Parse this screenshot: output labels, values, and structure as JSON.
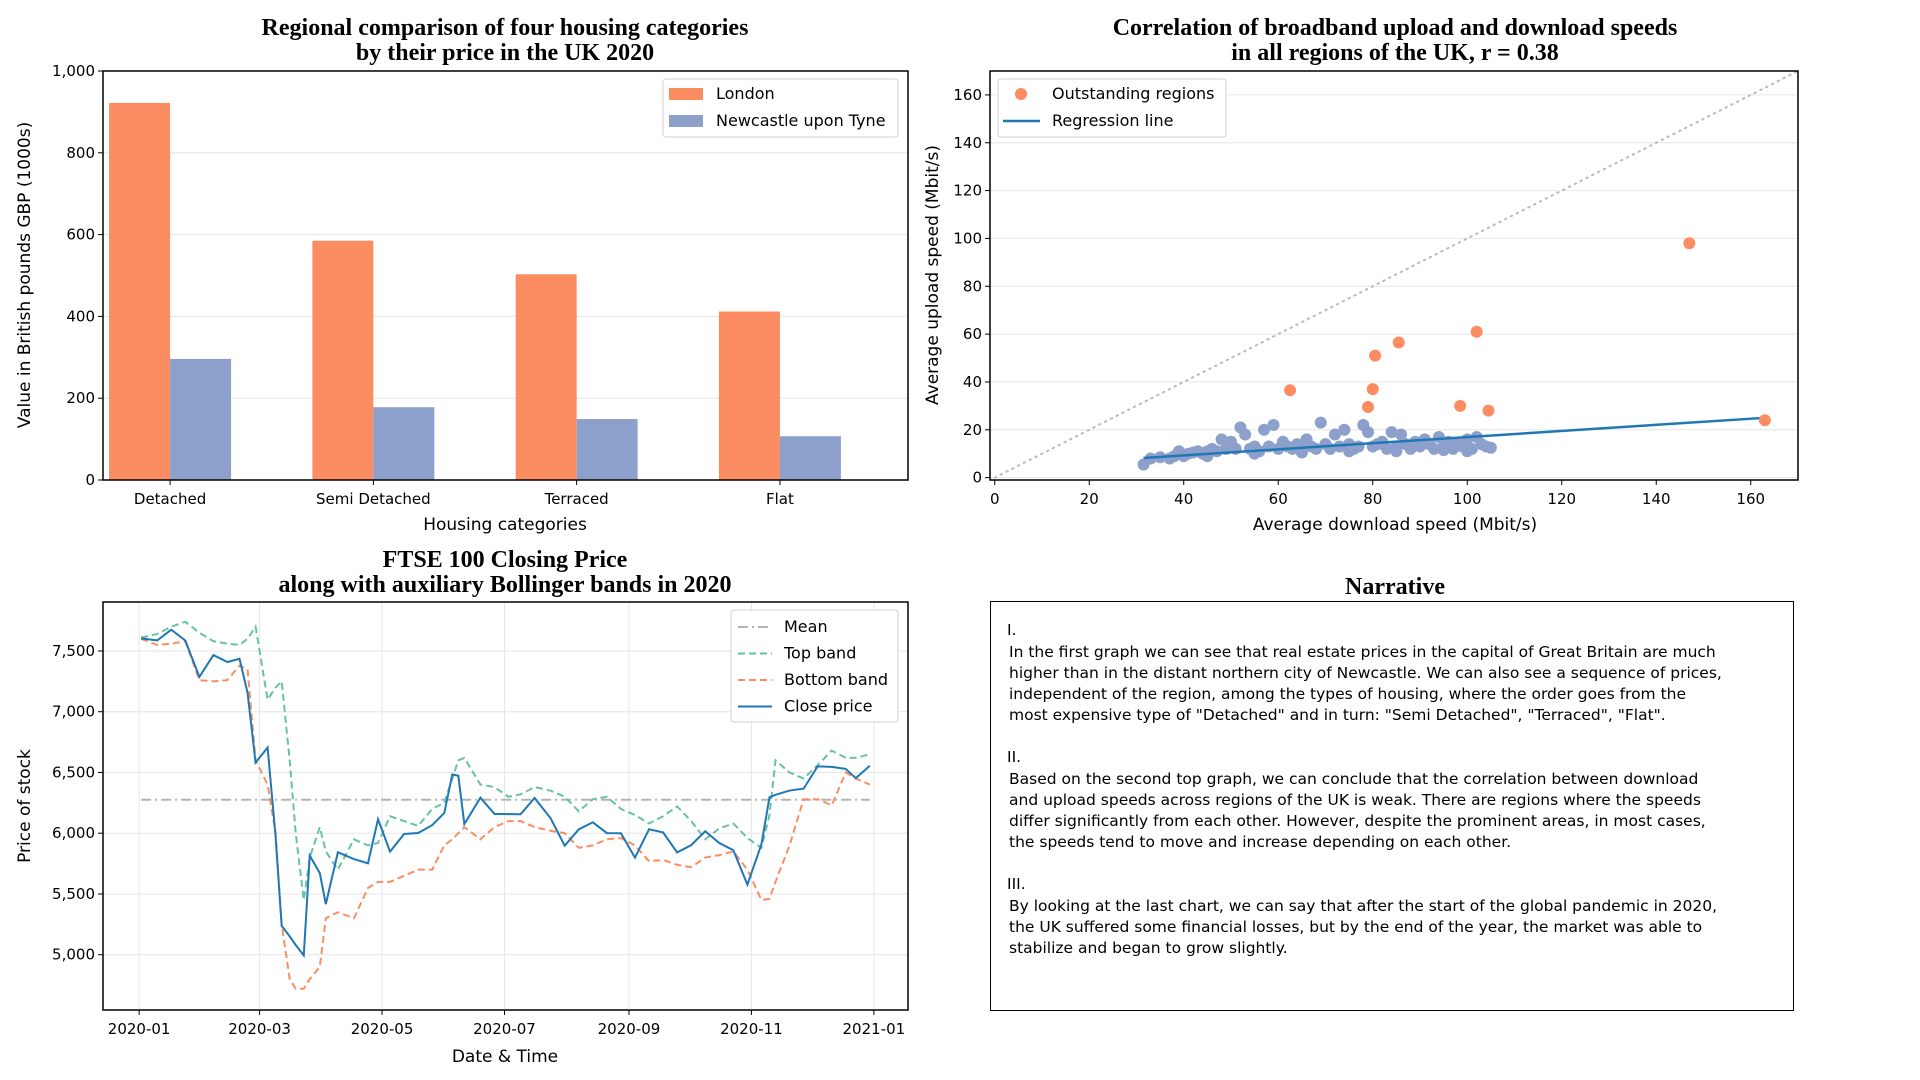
{
  "chart_data": [
    {
      "type": "bar",
      "title": [
        "Regional comparison of four housing categories",
        "by their price in the UK 2020"
      ],
      "xlabel": "Housing categories",
      "ylabel": "Value in British pounds GBP (1000s)",
      "categories": [
        "Detached",
        "Semi Detached",
        "Terraced",
        "Flat"
      ],
      "series": [
        {
          "name": "London",
          "values": [
            922,
            585,
            503,
            412
          ],
          "color": "#fc8d62"
        },
        {
          "name": "Newcastle upon Tyne",
          "values": [
            296,
            178,
            149,
            107
          ],
          "color": "#8da0cb"
        }
      ],
      "ylim": [
        0,
        1000
      ],
      "yticks": [
        0,
        200,
        400,
        600,
        800,
        1000
      ],
      "ytick_labels": [
        "0",
        "200",
        "400",
        "600",
        "800",
        "1,000"
      ],
      "grid": "y",
      "legend": "top-right"
    },
    {
      "type": "scatter",
      "title": [
        "Correlation of broadband upload and download speeds",
        "in all regions of the UK, r = 0.38"
      ],
      "xlabel": "Average download speed (Mbit/s)",
      "ylabel": "Average upload speed (Mbit/s)",
      "xlim": [
        -1,
        170
      ],
      "ylim": [
        -1,
        170
      ],
      "xticks": [
        0,
        20,
        40,
        60,
        80,
        100,
        120,
        140,
        160
      ],
      "yticks": [
        0,
        20,
        40,
        60,
        80,
        100,
        120,
        140,
        160
      ],
      "grid": "y",
      "legend": "top-left",
      "regions": {
        "color": "#8da0cb",
        "points": [
          [
            31.5,
            5.5
          ],
          [
            33,
            8
          ],
          [
            35,
            8.5
          ],
          [
            37,
            8
          ],
          [
            38,
            9
          ],
          [
            39,
            11
          ],
          [
            40,
            9
          ],
          [
            41,
            10
          ],
          [
            42,
            10.5
          ],
          [
            43,
            11
          ],
          [
            44,
            10
          ],
          [
            45,
            11
          ],
          [
            45,
            9
          ],
          [
            46,
            12
          ],
          [
            47,
            11
          ],
          [
            48,
            16
          ],
          [
            49,
            12
          ],
          [
            50,
            15
          ],
          [
            51,
            12
          ],
          [
            52,
            21
          ],
          [
            53,
            18
          ],
          [
            54,
            12
          ],
          [
            55,
            13
          ],
          [
            55,
            10
          ],
          [
            56,
            11
          ],
          [
            57,
            20
          ],
          [
            58,
            13
          ],
          [
            59,
            22
          ],
          [
            60,
            12
          ],
          [
            61,
            15
          ],
          [
            62,
            13
          ],
          [
            63,
            12
          ],
          [
            64,
            14
          ],
          [
            65,
            12
          ],
          [
            65,
            10.5
          ],
          [
            66,
            16
          ],
          [
            67,
            13
          ],
          [
            68,
            12
          ],
          [
            69,
            23
          ],
          [
            70,
            14
          ],
          [
            71,
            12
          ],
          [
            72,
            18
          ],
          [
            73,
            13
          ],
          [
            74,
            20
          ],
          [
            75,
            14
          ],
          [
            75,
            11
          ],
          [
            76,
            12
          ],
          [
            77,
            13
          ],
          [
            78,
            22
          ],
          [
            79,
            19
          ],
          [
            80,
            13
          ],
          [
            81,
            14
          ],
          [
            82,
            15
          ],
          [
            83,
            12
          ],
          [
            84,
            19
          ],
          [
            85,
            13
          ],
          [
            85,
            11
          ],
          [
            86,
            18
          ],
          [
            87,
            14
          ],
          [
            88,
            12
          ],
          [
            89,
            15
          ],
          [
            90,
            13
          ],
          [
            91,
            16
          ],
          [
            92,
            14
          ],
          [
            93,
            12
          ],
          [
            94,
            17
          ],
          [
            95,
            13
          ],
          [
            95,
            11.5
          ],
          [
            96,
            15
          ],
          [
            97,
            12
          ],
          [
            98,
            14
          ],
          [
            99,
            13
          ],
          [
            100,
            16
          ],
          [
            100,
            11
          ],
          [
            101,
            12
          ],
          [
            102,
            17
          ],
          [
            103,
            14
          ],
          [
            104,
            13
          ],
          [
            105,
            12.5
          ]
        ]
      },
      "outstanding": {
        "name": "Outstanding regions",
        "color": "#fc8d62",
        "points": [
          [
            62.5,
            36.5
          ],
          [
            79,
            29.5
          ],
          [
            80,
            37
          ],
          [
            80.5,
            51
          ],
          [
            85.5,
            56.5
          ],
          [
            98.5,
            30
          ],
          [
            102,
            61
          ],
          [
            104.5,
            28
          ],
          [
            147,
            98
          ],
          [
            163,
            24
          ]
        ]
      },
      "regression": {
        "name": "Regression line",
        "color": "#1f77b4",
        "from": [
          31.5,
          8.2
        ],
        "to": [
          163,
          25
        ]
      },
      "identity_line": {
        "color": "#bbbbbb",
        "from": [
          0,
          0
        ],
        "to": [
          170,
          170
        ]
      }
    },
    {
      "type": "line",
      "title": [
        "FTSE 100 Closing Price",
        "along with auxiliary Bollinger bands in 2020"
      ],
      "xlabel": "Date & Time",
      "ylabel": "Price of stock",
      "xlim": [
        "2019-12-14",
        "2021-01-18"
      ],
      "ylim": [
        4545,
        7903
      ],
      "xticks": [
        "2020-01-01",
        "2020-03-01",
        "2020-05-01",
        "2020-07-01",
        "2020-09-01",
        "2020-11-01",
        "2021-01-01"
      ],
      "xtick_labels": [
        "2020-01",
        "2020-03",
        "2020-05",
        "2020-07",
        "2020-09",
        "2020-11",
        "2021-01"
      ],
      "yticks": [
        5000,
        5500,
        6000,
        6500,
        7000,
        7500
      ],
      "ytick_labels": [
        "5,000",
        "5,500",
        "6,000",
        "6,500",
        "7,000",
        "7,500"
      ],
      "grid": "both",
      "legend": "top-right",
      "x": [
        "2020-01-02",
        "2020-01-10",
        "2020-01-17",
        "2020-01-24",
        "2020-01-31",
        "2020-02-07",
        "2020-02-14",
        "2020-02-20",
        "2020-02-24",
        "2020-02-28",
        "2020-03-05",
        "2020-03-09",
        "2020-03-12",
        "2020-03-16",
        "2020-03-19",
        "2020-03-23",
        "2020-03-26",
        "2020-03-31",
        "2020-04-03",
        "2020-04-09",
        "2020-04-17",
        "2020-04-24",
        "2020-04-29",
        "2020-05-05",
        "2020-05-12",
        "2020-05-19",
        "2020-05-26",
        "2020-06-01",
        "2020-06-05",
        "2020-06-08",
        "2020-06-11",
        "2020-06-19",
        "2020-06-26",
        "2020-07-03",
        "2020-07-09",
        "2020-07-16",
        "2020-07-24",
        "2020-07-31",
        "2020-08-07",
        "2020-08-14",
        "2020-08-21",
        "2020-08-28",
        "2020-09-04",
        "2020-09-11",
        "2020-09-18",
        "2020-09-25",
        "2020-10-02",
        "2020-10-09",
        "2020-10-16",
        "2020-10-23",
        "2020-10-30",
        "2020-11-06",
        "2020-11-10",
        "2020-11-13",
        "2020-11-20",
        "2020-11-27",
        "2020-12-04",
        "2020-12-11",
        "2020-12-18",
        "2020-12-23",
        "2020-12-30"
      ],
      "series": [
        {
          "name": "Mean",
          "style": "dashdot",
          "color": "#b3b3b3",
          "constant": 6275
        },
        {
          "name": "Top band",
          "style": "dashed",
          "color": "#66c2a5",
          "values": [
            7610,
            7640,
            7700,
            7740,
            7650,
            7580,
            7560,
            7550,
            7600,
            7700,
            7100,
            7200,
            7250,
            6600,
            6000,
            5450,
            5800,
            6050,
            5850,
            5700,
            5950,
            5900,
            5920,
            6140,
            6100,
            6060,
            6200,
            6250,
            6450,
            6600,
            6620,
            6400,
            6380,
            6300,
            6320,
            6380,
            6350,
            6300,
            6180,
            6280,
            6300,
            6200,
            6150,
            6080,
            6140,
            6220,
            6100,
            5950,
            6040,
            6080,
            5960,
            5880,
            6150,
            6600,
            6500,
            6450,
            6560,
            6680,
            6620,
            6620,
            6650
          ]
        },
        {
          "name": "Bottom band",
          "style": "dashed",
          "color": "#fc8d62",
          "values": [
            7600,
            7550,
            7560,
            7580,
            7260,
            7250,
            7260,
            7380,
            7350,
            6600,
            6400,
            6000,
            5250,
            4800,
            4720,
            4720,
            4800,
            4900,
            5300,
            5350,
            5300,
            5550,
            5600,
            5600,
            5650,
            5700,
            5700,
            5900,
            5950,
            6000,
            6050,
            5950,
            6050,
            6100,
            6100,
            6050,
            6020,
            6000,
            5880,
            5900,
            5950,
            5960,
            5900,
            5770,
            5780,
            5740,
            5720,
            5800,
            5820,
            5850,
            5700,
            5450,
            5460,
            5600,
            5900,
            6280,
            6280,
            6230,
            6500,
            6450,
            6400
          ]
        },
        {
          "name": "Close price",
          "style": "solid",
          "color": "#1f77b4",
          "values": [
            7604,
            7587,
            7675,
            7586,
            7286,
            7466,
            7409,
            7436,
            7157,
            6581,
            6705,
            5966,
            5237,
            5151,
            5080,
            4994,
            5816,
            5672,
            5416,
            5843,
            5787,
            5752,
            6115,
            5849,
            5994,
            6002,
            6067,
            6166,
            6484,
            6473,
            6076,
            6292,
            6159,
            6157,
            6156,
            6290,
            6123,
            5897,
            6032,
            6090,
            6001,
            6000,
            5799,
            6032,
            6007,
            5842,
            5902,
            6016,
            5919,
            5860,
            5577,
            5910,
            6296,
            6316,
            6351,
            6367,
            6550,
            6546,
            6529,
            6453,
            6555
          ]
        }
      ]
    }
  ],
  "narrative": {
    "title": "Narrative",
    "sections": [
      {
        "numeral": "I.",
        "lines": [
          "In the first graph we can see that real estate prices in the capital of Great Britain are much",
          "higher than in the distant northern city of Newcastle. We can also see a sequence of prices,",
          "independent of the region, among the types of housing, where the order goes from the",
          "most expensive type of \"Detached\" and in turn: \"Semi Detached\", \"Terraced\", \"Flat\"."
        ]
      },
      {
        "numeral": "II.",
        "lines": [
          "Based on the second top graph, we can conclude that the correlation between download",
          "and upload speeds across regions of the UK is weak. There are regions where the speeds",
          "differ significantly from each other. However, despite the prominent areas, in most cases,",
          "the speeds tend to move and increase depending on each other."
        ]
      },
      {
        "numeral": "III.",
        "lines": [
          "By looking at the last chart, we can say that after the start of the global pandemic in 2020,",
          "the UK suffered some financial losses, but by the end of the year, the market was able to",
          "stabilize and began to grow slightly."
        ]
      }
    ]
  }
}
